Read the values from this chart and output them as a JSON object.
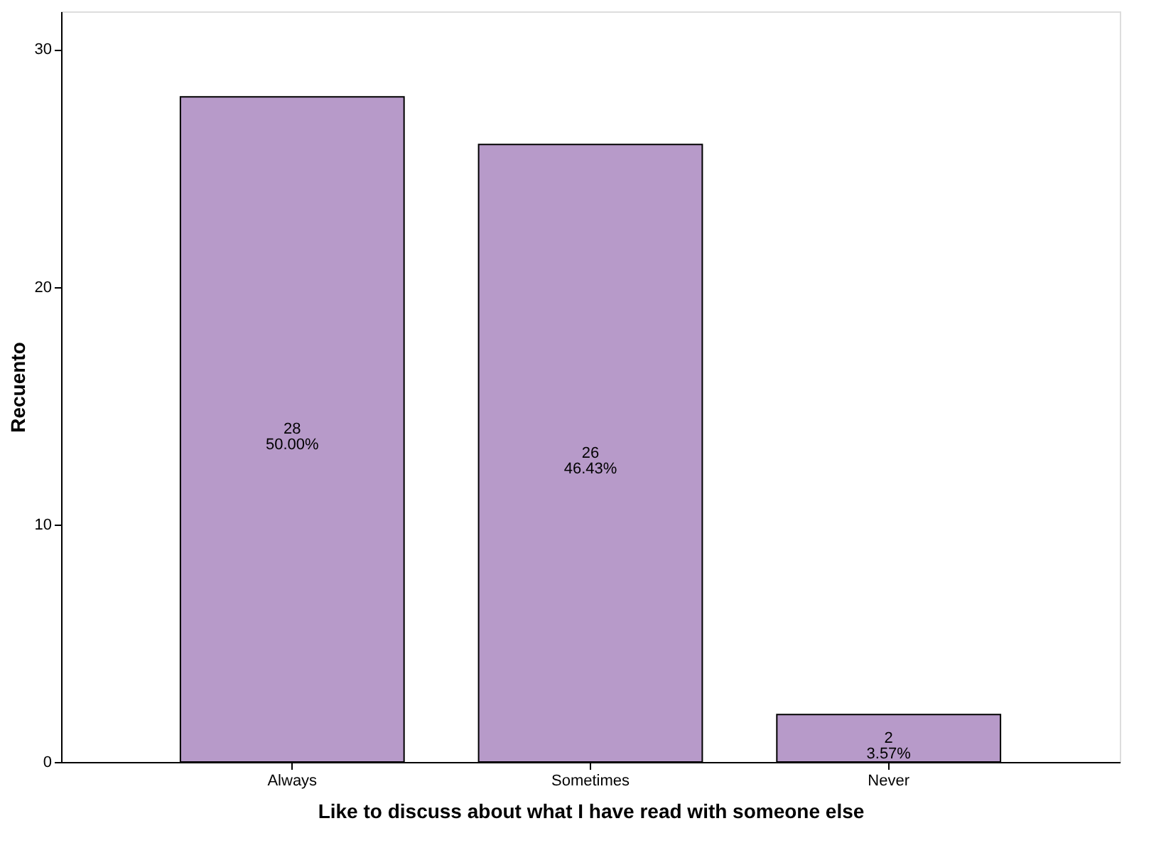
{
  "chart_data": {
    "type": "bar",
    "xlabel": "Like to discuss about what I have read with someone else",
    "ylabel": "Recuento",
    "categories": [
      "Always",
      "Sometimes",
      "Never"
    ],
    "values": [
      28,
      26,
      2
    ],
    "color": "#b79ac9",
    "value_labels": [
      "28\n50.00%",
      "26\n46.43%",
      "2\n3.57%"
    ],
    "ylim": [
      0,
      31.6
    ],
    "yticks": [
      0,
      10,
      20,
      30
    ],
    "grid": false
  }
}
